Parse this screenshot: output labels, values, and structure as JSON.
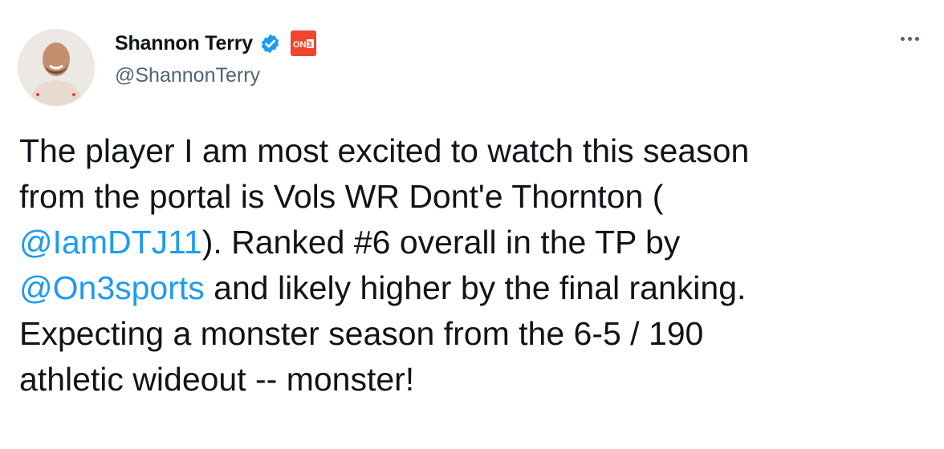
{
  "author": {
    "name": "Shannon Terry",
    "handle": "@ShannonTerry",
    "verified": true,
    "affiliate_badge": "On3"
  },
  "menu_icon": "more-horizontal-icon",
  "colors": {
    "text": "#0f1419",
    "secondary": "#536471",
    "link": "#1d9bf0",
    "verified": "#1d9bf0",
    "badge": "#f2452e"
  },
  "tweet": {
    "lines": [
      [
        {
          "text": "The player I am most excited to watch this season"
        }
      ],
      [
        {
          "text": "from the portal is Vols WR Dont'e Thornton ("
        }
      ],
      [
        {
          "text": "@IamDTJ11",
          "link": true
        },
        {
          "text": "). Ranked #6 overall in the TP by"
        }
      ],
      [
        {
          "text": "@On3sports",
          "link": true
        },
        {
          "text": " and likely higher by the final ranking."
        }
      ],
      [
        {
          "text": "Expecting a monster season from the 6-5 / 190"
        }
      ],
      [
        {
          "text": "athletic wideout -- monster!"
        }
      ]
    ]
  }
}
